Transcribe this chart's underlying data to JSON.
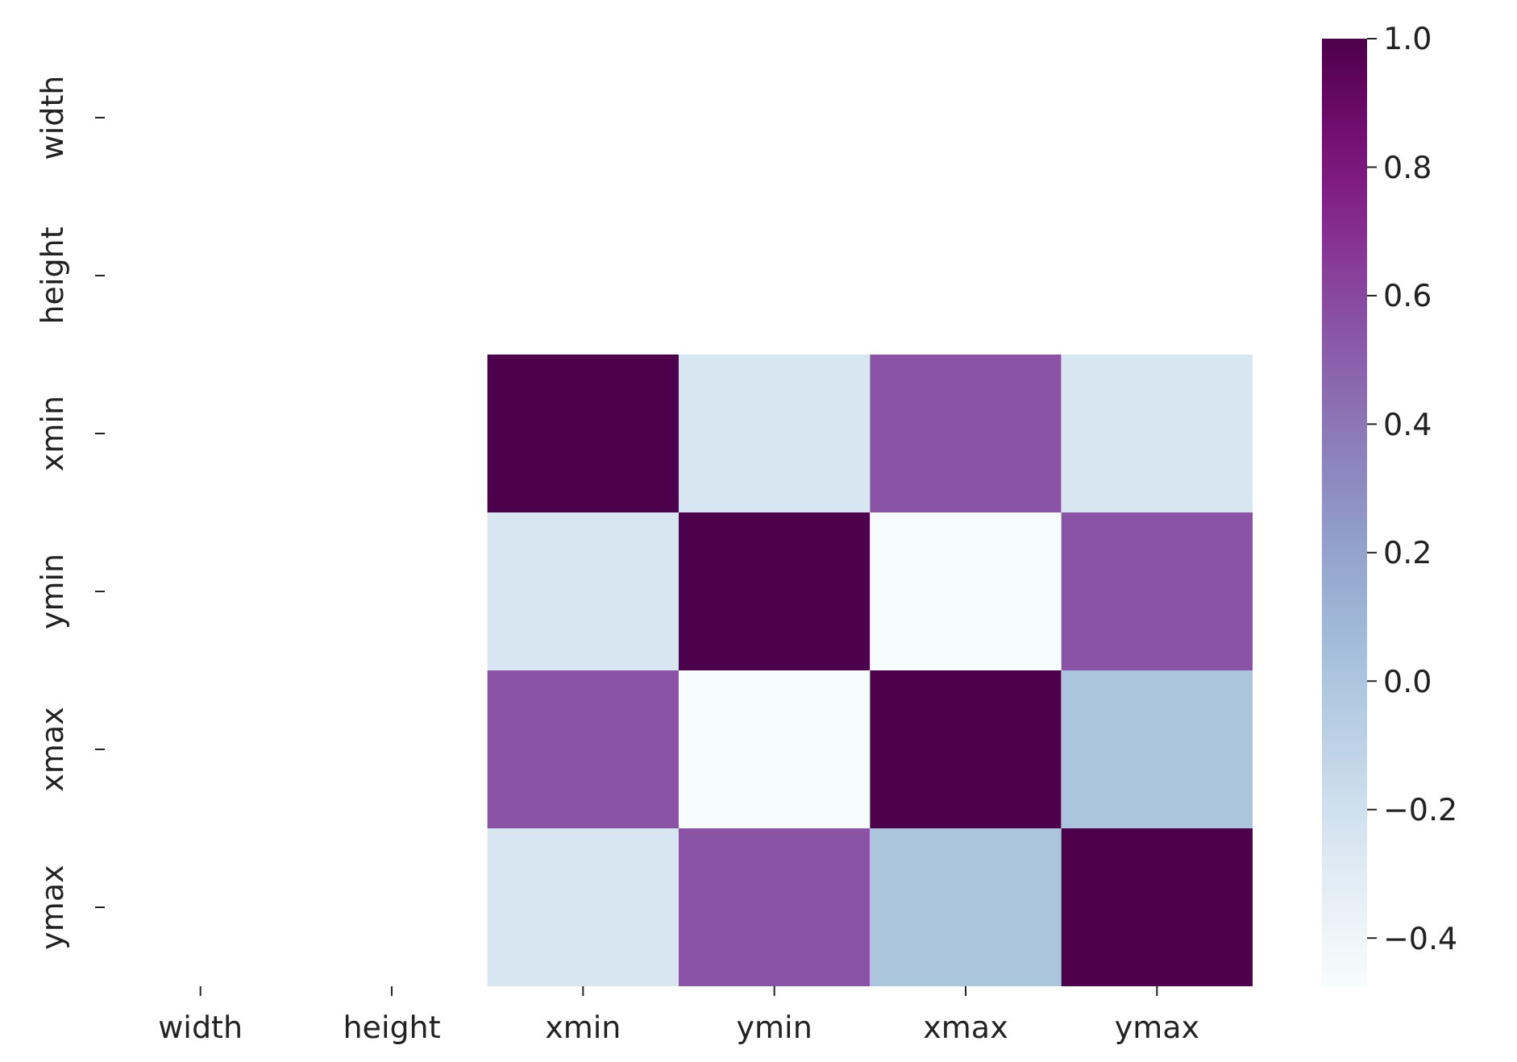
{
  "chart_data": {
    "type": "heatmap",
    "categories": [
      "width",
      "height",
      "xmin",
      "ymin",
      "xmax",
      "ymax"
    ],
    "y_categories": [
      "width",
      "height",
      "xmin",
      "ymin",
      "xmax",
      "ymax"
    ],
    "cells": [
      [
        null,
        null,
        null,
        null,
        null,
        null
      ],
      [
        null,
        null,
        null,
        null,
        null,
        null
      ],
      [
        null,
        null,
        1.0,
        -0.25,
        0.55,
        -0.25
      ],
      [
        null,
        null,
        -0.25,
        1.0,
        -0.475,
        0.55
      ],
      [
        null,
        null,
        0.55,
        -0.475,
        1.0,
        0.0
      ],
      [
        null,
        null,
        -0.25,
        0.55,
        0.0,
        1.0
      ]
    ],
    "clim": [
      -0.475,
      1.0
    ],
    "cticks": [
      {
        "value": -0.4,
        "label": "−0.4"
      },
      {
        "value": -0.2,
        "label": "−0.2"
      },
      {
        "value": 0,
        "label": "0.0"
      },
      0.2,
      0.4,
      0.6,
      0.8,
      {
        "value": 1,
        "label": "1.0"
      }
    ]
  }
}
